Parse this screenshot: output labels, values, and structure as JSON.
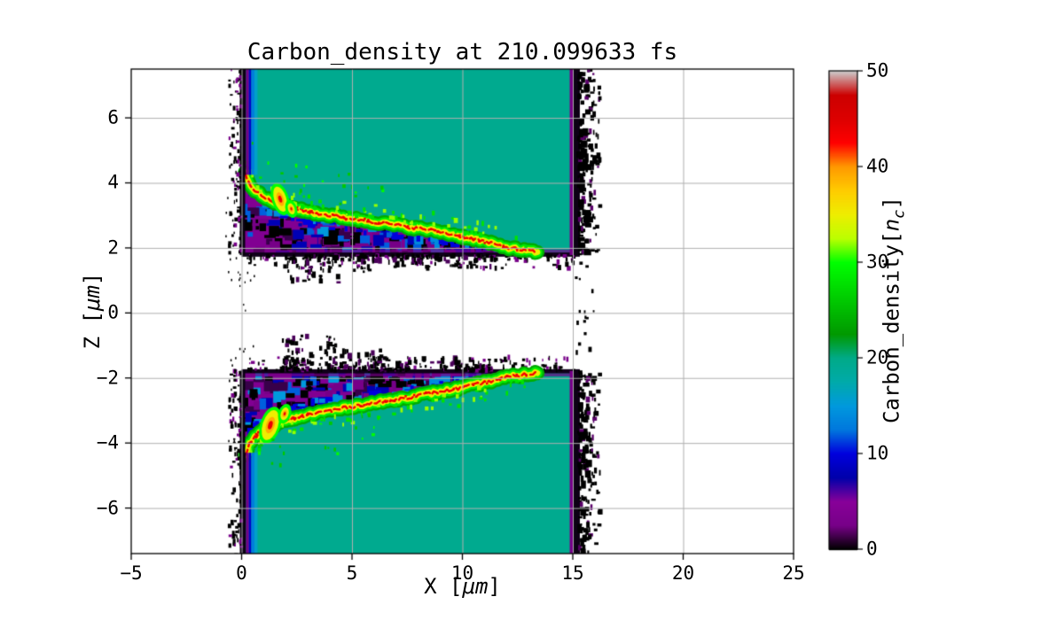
{
  "figure": {
    "background": "#ffffff"
  },
  "chart_data": {
    "type": "heatmap",
    "title": "Carbon_density at 210.099633 fs",
    "xlabel": {
      "prefix": "X [",
      "math": "μm",
      "suffix": "]"
    },
    "ylabel": {
      "prefix": "Z [",
      "math": "μm",
      "suffix": "]"
    },
    "xlim": [
      -5,
      25
    ],
    "ylim": [
      -7.4,
      7.5
    ],
    "xticks": {
      "values": [
        -5,
        0,
        5,
        10,
        15,
        20,
        25
      ],
      "labels": [
        "−5",
        "0",
        "5",
        "10",
        "15",
        "20",
        "25"
      ]
    },
    "yticks": {
      "values": [
        -6,
        -4,
        -2,
        0,
        2,
        4,
        6
      ],
      "labels": [
        "−6",
        "−4",
        "−2",
        "0",
        "2",
        "4",
        "6"
      ]
    },
    "grid": {
      "show": true,
      "color": "#b0b0b0"
    },
    "colorbar": {
      "label": {
        "prefix": "Carbon_density[",
        "math": "n",
        "sub": "c",
        "suffix": "]"
      },
      "vmin": 0,
      "vmax": 50,
      "ticks": {
        "values": [
          0,
          10,
          20,
          30,
          40,
          50
        ],
        "labels": [
          "0",
          "10",
          "20",
          "30",
          "40",
          "50"
        ]
      },
      "colormap": "nipy_spectral",
      "stops": [
        [
          0,
          "#000000"
        ],
        [
          0.05,
          "#770088"
        ],
        [
          0.1,
          "#880099"
        ],
        [
          0.15,
          "#0000aa"
        ],
        [
          0.2,
          "#0000dd"
        ],
        [
          0.25,
          "#0077dd"
        ],
        [
          0.3,
          "#0099dd"
        ],
        [
          0.35,
          "#00aaaa"
        ],
        [
          0.4,
          "#00aa88"
        ],
        [
          0.45,
          "#009900"
        ],
        [
          0.5,
          "#00bb00"
        ],
        [
          0.55,
          "#00dd00"
        ],
        [
          0.6,
          "#00ff00"
        ],
        [
          0.65,
          "#bbff00"
        ],
        [
          0.7,
          "#eeee00"
        ],
        [
          0.75,
          "#ffcc00"
        ],
        [
          0.8,
          "#ff9900"
        ],
        [
          0.85,
          "#ff0000"
        ],
        [
          0.9,
          "#dd0000"
        ],
        [
          0.95,
          "#cc0000"
        ],
        [
          1,
          "#cccccc"
        ]
      ]
    },
    "features": {
      "bulk_density_nc": 20,
      "ridge_density_nc": 42,
      "channel_density_nc": 4,
      "slab_x_range": [
        0,
        15.2
      ],
      "upper_surface_z": 1.78,
      "lower_surface_z": -1.78,
      "upper_ridge": [
        [
          0.15,
          4.35
        ],
        [
          0.3,
          4.05
        ],
        [
          0.6,
          3.78
        ],
        [
          1,
          3.55
        ],
        [
          1.5,
          3.4
        ],
        [
          2,
          3.3
        ],
        [
          2.5,
          3.2
        ],
        [
          3,
          3.12
        ],
        [
          3.5,
          3.05
        ],
        [
          4,
          3.0
        ],
        [
          4.5,
          2.95
        ],
        [
          5,
          2.9
        ],
        [
          5.5,
          2.85
        ],
        [
          6,
          2.8
        ],
        [
          6.5,
          2.75
        ],
        [
          7,
          2.7
        ],
        [
          7.5,
          2.65
        ],
        [
          8,
          2.6
        ],
        [
          8.5,
          2.55
        ],
        [
          9,
          2.5
        ],
        [
          9.5,
          2.42
        ],
        [
          10,
          2.35
        ],
        [
          10.5,
          2.28
        ],
        [
          11,
          2.2
        ],
        [
          11.5,
          2.1
        ],
        [
          12,
          2.02
        ],
        [
          12.5,
          1.96
        ],
        [
          13,
          1.9
        ],
        [
          13.4,
          1.87
        ]
      ],
      "lower_ridge": [
        [
          0.15,
          -4.4
        ],
        [
          0.35,
          -4.05
        ],
        [
          0.6,
          -3.8
        ],
        [
          1,
          -3.6
        ],
        [
          1.5,
          -3.45
        ],
        [
          2,
          -3.32
        ],
        [
          2.5,
          -3.22
        ],
        [
          3,
          -3.14
        ],
        [
          3.5,
          -3.06
        ],
        [
          4,
          -3.0
        ],
        [
          4.5,
          -2.94
        ],
        [
          5,
          -2.88
        ],
        [
          5.5,
          -2.82
        ],
        [
          6,
          -2.77
        ],
        [
          6.5,
          -2.72
        ],
        [
          7,
          -2.66
        ],
        [
          7.5,
          -2.6
        ],
        [
          8,
          -2.54
        ],
        [
          8.5,
          -2.48
        ],
        [
          9,
          -2.42
        ],
        [
          9.5,
          -2.36
        ],
        [
          10,
          -2.3
        ],
        [
          10.5,
          -2.22
        ],
        [
          11,
          -2.14
        ],
        [
          11.5,
          -2.06
        ],
        [
          12,
          -1.98
        ],
        [
          12.5,
          -1.93
        ],
        [
          13,
          -1.88
        ],
        [
          13.4,
          -1.85
        ]
      ],
      "hotspots": [
        {
          "x": 1.75,
          "z": 3.5,
          "w": 0.55,
          "h": 0.8
        },
        {
          "x": 2.25,
          "z": 3.2,
          "w": 0.3,
          "h": 0.35
        },
        {
          "x": 1.3,
          "z": -3.45,
          "w": 0.7,
          "h": 0.95
        },
        {
          "x": 1.95,
          "z": -3.1,
          "w": 0.35,
          "h": 0.4
        }
      ]
    }
  }
}
